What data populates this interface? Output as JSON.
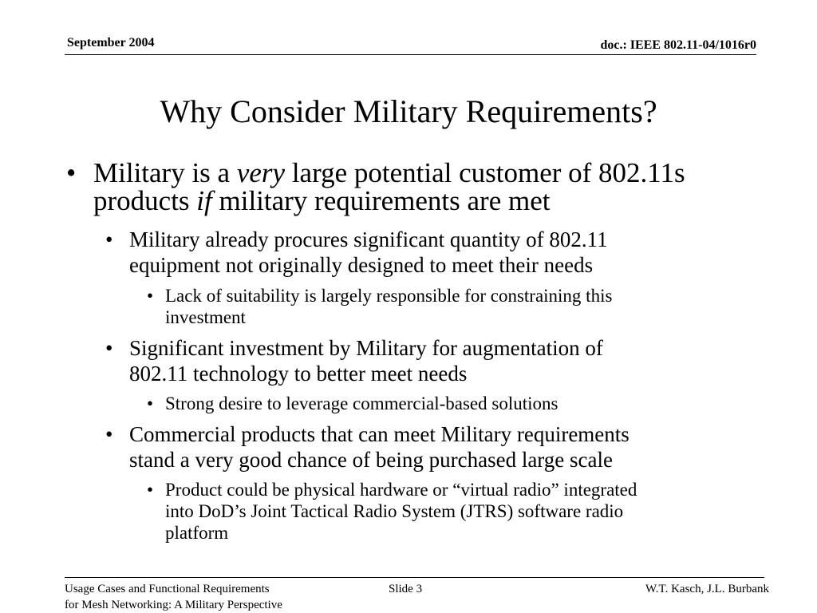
{
  "header": {
    "date": "September 2004",
    "doc_id": "doc.: IEEE 802.11-04/1016r0"
  },
  "title": "Why Consider Military Requirements?",
  "bullets": {
    "b1": {
      "marker": "•",
      "part1": "Military is a ",
      "em1": "very",
      "part2": " large potential customer of 802.11s",
      "part3": "products ",
      "em2": "if",
      "part4": " military requirements are met"
    },
    "b1_1": {
      "marker": "•",
      "line1": "Military already procures significant quantity of 802.11",
      "line2": "equipment not originally designed to meet their needs"
    },
    "b1_1_1": {
      "marker": "•",
      "line1": "Lack of suitability is largely responsible for constraining this",
      "line2": "investment"
    },
    "b1_2": {
      "marker": "•",
      "line1": "Significant investment by Military for augmentation of",
      "line2": "802.11 technology to better meet needs"
    },
    "b1_2_1": {
      "marker": "•",
      "line1": "Strong desire to leverage commercial-based solutions"
    },
    "b1_3": {
      "marker": "•",
      "line1": "Commercial products that can meet Military requirements",
      "line2": "stand a very good chance of being purchased large scale"
    },
    "b1_3_1": {
      "marker": "•",
      "line1": "Product could be physical hardware or “virtual radio” integrated",
      "line2": "into DoD’s Joint Tactical Radio System (JTRS) software radio",
      "line3": "platform"
    }
  },
  "footer": {
    "left_line1": "Usage Cases and Functional Requirements",
    "left_line2": "for Mesh Networking: A Military Perspective",
    "slide": "Slide 3",
    "authors": "W.T. Kasch, J.L. Burbank"
  }
}
